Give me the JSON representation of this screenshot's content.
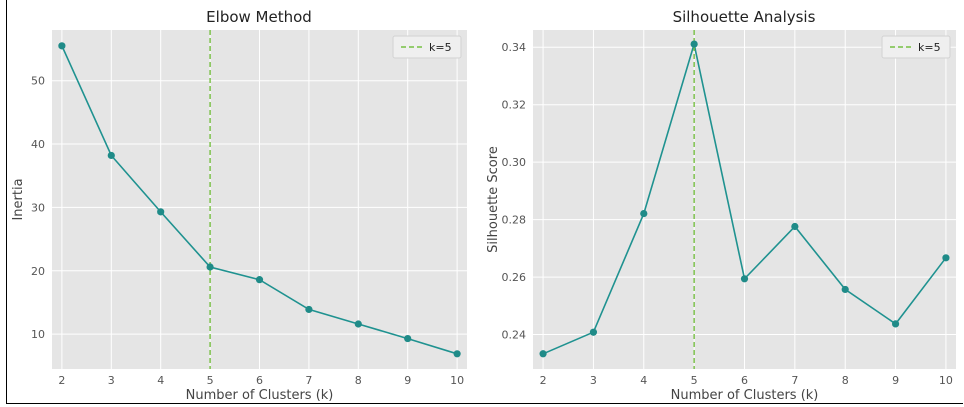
{
  "chart_data": [
    {
      "type": "line",
      "title": "Elbow Method",
      "xlabel": "Number of Clusters (k)",
      "ylabel": "Inertia",
      "x": [
        2,
        3,
        4,
        5,
        6,
        7,
        8,
        9,
        10
      ],
      "series": [
        {
          "values": [
            55.5,
            38.2,
            29.3,
            20.6,
            18.6,
            13.9,
            11.6,
            9.3,
            6.9
          ]
        }
      ],
      "xlim": [
        1.8,
        10.2
      ],
      "ylim": [
        4.5,
        58
      ],
      "xticks": [
        2,
        3,
        4,
        5,
        6,
        7,
        8,
        9,
        10
      ],
      "yticks": [
        10,
        20,
        30,
        40,
        50
      ],
      "ytick_labels": [
        "10",
        "20",
        "30",
        "40",
        "50"
      ],
      "vline": {
        "x": 5,
        "label": "k=5",
        "color": "#77c043"
      },
      "grid": true,
      "legend": "top-right",
      "colors": {
        "line": "#1f9290",
        "marker": "#1f8b88",
        "background": "#e5e5e5",
        "grid": "#ffffff"
      }
    },
    {
      "type": "line",
      "title": "Silhouette Analysis",
      "xlabel": "Number of Clusters (k)",
      "ylabel": "Silhouette Score",
      "x": [
        2,
        3,
        4,
        5,
        6,
        7,
        8,
        9,
        10
      ],
      "series": [
        {
          "values": [
            0.2333,
            0.2408,
            0.2821,
            0.3411,
            0.2594,
            0.2776,
            0.2557,
            0.2437,
            0.2667
          ]
        }
      ],
      "xlim": [
        1.8,
        10.2
      ],
      "ylim": [
        0.228,
        0.346
      ],
      "xticks": [
        2,
        3,
        4,
        5,
        6,
        7,
        8,
        9,
        10
      ],
      "yticks": [
        0.24,
        0.26,
        0.28,
        0.3,
        0.32,
        0.34
      ],
      "ytick_labels": [
        "0.24",
        "0.26",
        "0.28",
        "0.30",
        "0.32",
        "0.34"
      ],
      "vline": {
        "x": 5,
        "label": "k=5",
        "color": "#77c043"
      },
      "grid": true,
      "legend": "top-right",
      "colors": {
        "line": "#1f9290",
        "marker": "#1f8b88",
        "background": "#e5e5e5",
        "grid": "#ffffff"
      }
    }
  ]
}
